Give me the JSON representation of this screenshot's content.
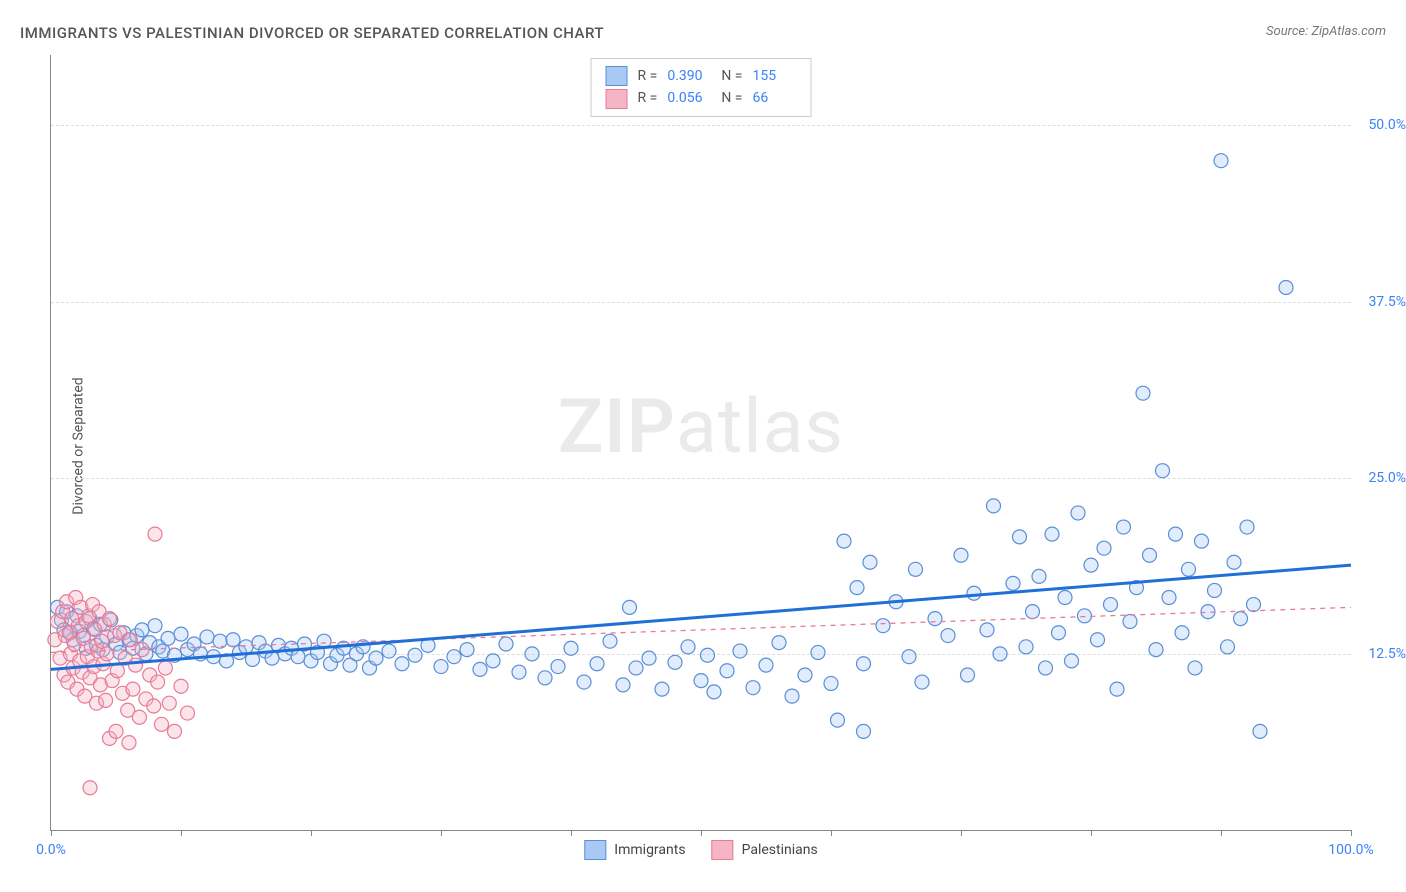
{
  "title": "IMMIGRANTS VS PALESTINIAN DIVORCED OR SEPARATED CORRELATION CHART",
  "source_label": "Source:",
  "source_name": "ZipAtlas.com",
  "ylabel": "Divorced or Separated",
  "watermark_a": "ZIP",
  "watermark_b": "atlas",
  "chart": {
    "type": "scatter",
    "background_color": "#ffffff",
    "grid_color": "#dddddd",
    "axis_color": "#888888",
    "xlim": [
      0,
      100
    ],
    "ylim": [
      0,
      55
    ],
    "xtick_positions": [
      0,
      10,
      20,
      30,
      40,
      50,
      60,
      70,
      80,
      90,
      100
    ],
    "xtick_labels_shown": {
      "0": "0.0%",
      "100": "100.0%"
    },
    "ytick_positions": [
      12.5,
      25.0,
      37.5,
      50.0
    ],
    "ytick_labels": [
      "12.5%",
      "25.0%",
      "37.5%",
      "50.0%"
    ],
    "marker_radius": 7,
    "marker_fill_opacity": 0.35,
    "marker_stroke_width": 1.2,
    "series": [
      {
        "name": "Immigrants",
        "color_fill": "#a9c9f5",
        "color_stroke": "#5a8fd6",
        "R": "0.390",
        "N": "155",
        "trend": {
          "x1": 0,
          "y1": 11.4,
          "x2": 100,
          "y2": 18.8,
          "stroke": "#1f6fd6",
          "width": 3,
          "dash": "none"
        },
        "points": [
          [
            0.5,
            15.8
          ],
          [
            0.8,
            14.9
          ],
          [
            1.0,
            14.2
          ],
          [
            1.2,
            15.5
          ],
          [
            1.5,
            14.0
          ],
          [
            1.7,
            13.5
          ],
          [
            2.0,
            15.2
          ],
          [
            2.2,
            14.1
          ],
          [
            2.5,
            13.8
          ],
          [
            2.7,
            12.9
          ],
          [
            3.0,
            15.0
          ],
          [
            3.3,
            14.3
          ],
          [
            3.5,
            13.1
          ],
          [
            3.8,
            14.6
          ],
          [
            4.0,
            12.8
          ],
          [
            4.3,
            13.7
          ],
          [
            4.6,
            14.9
          ],
          [
            5.0,
            13.2
          ],
          [
            5.3,
            12.6
          ],
          [
            5.6,
            14.0
          ],
          [
            6.0,
            13.5
          ],
          [
            6.3,
            12.9
          ],
          [
            6.6,
            13.8
          ],
          [
            7.0,
            14.2
          ],
          [
            7.3,
            12.5
          ],
          [
            7.6,
            13.3
          ],
          [
            8.0,
            14.5
          ],
          [
            8.3,
            13.0
          ],
          [
            8.6,
            12.7
          ],
          [
            9.0,
            13.6
          ],
          [
            9.5,
            12.4
          ],
          [
            10.0,
            13.9
          ],
          [
            10.5,
            12.8
          ],
          [
            11.0,
            13.2
          ],
          [
            11.5,
            12.5
          ],
          [
            12.0,
            13.7
          ],
          [
            12.5,
            12.3
          ],
          [
            13.0,
            13.4
          ],
          [
            13.5,
            12.0
          ],
          [
            14.0,
            13.5
          ],
          [
            14.5,
            12.6
          ],
          [
            15.0,
            13.0
          ],
          [
            15.5,
            12.1
          ],
          [
            16.0,
            13.3
          ],
          [
            16.5,
            12.7
          ],
          [
            17.0,
            12.2
          ],
          [
            17.5,
            13.1
          ],
          [
            18.0,
            12.5
          ],
          [
            18.5,
            12.9
          ],
          [
            19.0,
            12.3
          ],
          [
            19.5,
            13.2
          ],
          [
            20.0,
            12.0
          ],
          [
            20.5,
            12.6
          ],
          [
            21.0,
            13.4
          ],
          [
            21.5,
            11.8
          ],
          [
            22.0,
            12.4
          ],
          [
            22.5,
            12.9
          ],
          [
            23.0,
            11.7
          ],
          [
            23.5,
            12.5
          ],
          [
            24.0,
            13.0
          ],
          [
            24.5,
            11.5
          ],
          [
            25.0,
            12.2
          ],
          [
            26.0,
            12.7
          ],
          [
            27.0,
            11.8
          ],
          [
            28.0,
            12.4
          ],
          [
            29.0,
            13.1
          ],
          [
            30.0,
            11.6
          ],
          [
            31.0,
            12.3
          ],
          [
            32.0,
            12.8
          ],
          [
            33.0,
            11.4
          ],
          [
            34.0,
            12.0
          ],
          [
            35.0,
            13.2
          ],
          [
            36.0,
            11.2
          ],
          [
            37.0,
            12.5
          ],
          [
            38.0,
            10.8
          ],
          [
            39.0,
            11.6
          ],
          [
            40.0,
            12.9
          ],
          [
            41.0,
            10.5
          ],
          [
            42.0,
            11.8
          ],
          [
            43.0,
            13.4
          ],
          [
            44.0,
            10.3
          ],
          [
            44.5,
            15.8
          ],
          [
            45.0,
            11.5
          ],
          [
            46.0,
            12.2
          ],
          [
            47.0,
            10.0
          ],
          [
            48.0,
            11.9
          ],
          [
            49.0,
            13.0
          ],
          [
            50.0,
            10.6
          ],
          [
            50.5,
            12.4
          ],
          [
            51.0,
            9.8
          ],
          [
            52.0,
            11.3
          ],
          [
            53.0,
            12.7
          ],
          [
            54.0,
            10.1
          ],
          [
            55.0,
            11.7
          ],
          [
            56.0,
            13.3
          ],
          [
            57.0,
            9.5
          ],
          [
            58.0,
            11.0
          ],
          [
            59.0,
            12.6
          ],
          [
            60.0,
            10.4
          ],
          [
            60.5,
            7.8
          ],
          [
            61.0,
            20.5
          ],
          [
            62.0,
            17.2
          ],
          [
            62.5,
            11.8
          ],
          [
            63.0,
            19.0
          ],
          [
            64.0,
            14.5
          ],
          [
            65.0,
            16.2
          ],
          [
            66.0,
            12.3
          ],
          [
            66.5,
            18.5
          ],
          [
            67.0,
            10.5
          ],
          [
            68.0,
            15.0
          ],
          [
            69.0,
            13.8
          ],
          [
            70.0,
            19.5
          ],
          [
            70.5,
            11.0
          ],
          [
            71.0,
            16.8
          ],
          [
            72.0,
            14.2
          ],
          [
            72.5,
            23.0
          ],
          [
            73.0,
            12.5
          ],
          [
            74.0,
            17.5
          ],
          [
            74.5,
            20.8
          ],
          [
            75.0,
            13.0
          ],
          [
            75.5,
            15.5
          ],
          [
            76.0,
            18.0
          ],
          [
            76.5,
            11.5
          ],
          [
            77.0,
            21.0
          ],
          [
            77.5,
            14.0
          ],
          [
            78.0,
            16.5
          ],
          [
            78.5,
            12.0
          ],
          [
            79.0,
            22.5
          ],
          [
            79.5,
            15.2
          ],
          [
            80.0,
            18.8
          ],
          [
            80.5,
            13.5
          ],
          [
            81.0,
            20.0
          ],
          [
            81.5,
            16.0
          ],
          [
            82.0,
            10.0
          ],
          [
            82.5,
            21.5
          ],
          [
            83.0,
            14.8
          ],
          [
            83.5,
            17.2
          ],
          [
            84.0,
            31.0
          ],
          [
            84.5,
            19.5
          ],
          [
            85.0,
            12.8
          ],
          [
            85.5,
            25.5
          ],
          [
            86.0,
            16.5
          ],
          [
            86.5,
            21.0
          ],
          [
            87.0,
            14.0
          ],
          [
            87.5,
            18.5
          ],
          [
            88.0,
            11.5
          ],
          [
            88.5,
            20.5
          ],
          [
            89.0,
            15.5
          ],
          [
            89.5,
            17.0
          ],
          [
            90.0,
            47.5
          ],
          [
            90.5,
            13.0
          ],
          [
            91.0,
            19.0
          ],
          [
            91.5,
            15.0
          ],
          [
            92.0,
            21.5
          ],
          [
            92.5,
            16.0
          ],
          [
            93.0,
            7.0
          ],
          [
            95.0,
            38.5
          ],
          [
            62.5,
            7.0
          ]
        ]
      },
      {
        "name": "Palestinians",
        "color_fill": "#f5b5c4",
        "color_stroke": "#e77b98",
        "R": "0.056",
        "N": "66",
        "trend": {
          "x1": 0,
          "y1": 12.6,
          "x2": 100,
          "y2": 15.8,
          "stroke": "#e77b98",
          "width": 1.3,
          "dash": "5,5"
        },
        "points": [
          [
            0.3,
            13.5
          ],
          [
            0.5,
            14.8
          ],
          [
            0.7,
            12.2
          ],
          [
            0.9,
            15.5
          ],
          [
            1.0,
            11.0
          ],
          [
            1.1,
            13.8
          ],
          [
            1.2,
            16.2
          ],
          [
            1.3,
            10.5
          ],
          [
            1.4,
            14.0
          ],
          [
            1.5,
            12.5
          ],
          [
            1.6,
            15.0
          ],
          [
            1.7,
            11.5
          ],
          [
            1.8,
            13.2
          ],
          [
            1.9,
            16.5
          ],
          [
            2.0,
            10.0
          ],
          [
            2.1,
            14.5
          ],
          [
            2.2,
            12.0
          ],
          [
            2.3,
            15.8
          ],
          [
            2.4,
            11.2
          ],
          [
            2.5,
            13.6
          ],
          [
            2.6,
            9.5
          ],
          [
            2.7,
            14.8
          ],
          [
            2.8,
            12.3
          ],
          [
            2.9,
            15.2
          ],
          [
            3.0,
            10.8
          ],
          [
            3.1,
            13.0
          ],
          [
            3.2,
            16.0
          ],
          [
            3.3,
            11.6
          ],
          [
            3.4,
            14.2
          ],
          [
            3.5,
            9.0
          ],
          [
            3.6,
            12.7
          ],
          [
            3.7,
            15.5
          ],
          [
            3.8,
            10.3
          ],
          [
            3.9,
            13.4
          ],
          [
            4.0,
            11.8
          ],
          [
            4.1,
            14.6
          ],
          [
            4.2,
            9.2
          ],
          [
            4.3,
            12.5
          ],
          [
            4.5,
            15.0
          ],
          [
            4.7,
            10.6
          ],
          [
            4.9,
            13.8
          ],
          [
            5.1,
            11.3
          ],
          [
            5.3,
            14.0
          ],
          [
            5.5,
            9.7
          ],
          [
            5.7,
            12.2
          ],
          [
            5.9,
            8.5
          ],
          [
            6.1,
            13.5
          ],
          [
            6.3,
            10.0
          ],
          [
            6.5,
            11.7
          ],
          [
            6.8,
            8.0
          ],
          [
            7.0,
            12.8
          ],
          [
            7.3,
            9.3
          ],
          [
            7.6,
            11.0
          ],
          [
            7.9,
            8.8
          ],
          [
            8.2,
            10.5
          ],
          [
            8.5,
            7.5
          ],
          [
            8.8,
            11.5
          ],
          [
            9.1,
            9.0
          ],
          [
            9.5,
            7.0
          ],
          [
            10.0,
            10.2
          ],
          [
            10.5,
            8.3
          ],
          [
            8.0,
            21.0
          ],
          [
            3.0,
            3.0
          ],
          [
            4.5,
            6.5
          ],
          [
            5.0,
            7.0
          ],
          [
            6.0,
            6.2
          ]
        ]
      }
    ],
    "bottom_legend": [
      {
        "label": "Immigrants",
        "fill": "#a9c9f5",
        "stroke": "#5a8fd6"
      },
      {
        "label": "Palestinians",
        "fill": "#f5b5c4",
        "stroke": "#e77b98"
      }
    ]
  }
}
